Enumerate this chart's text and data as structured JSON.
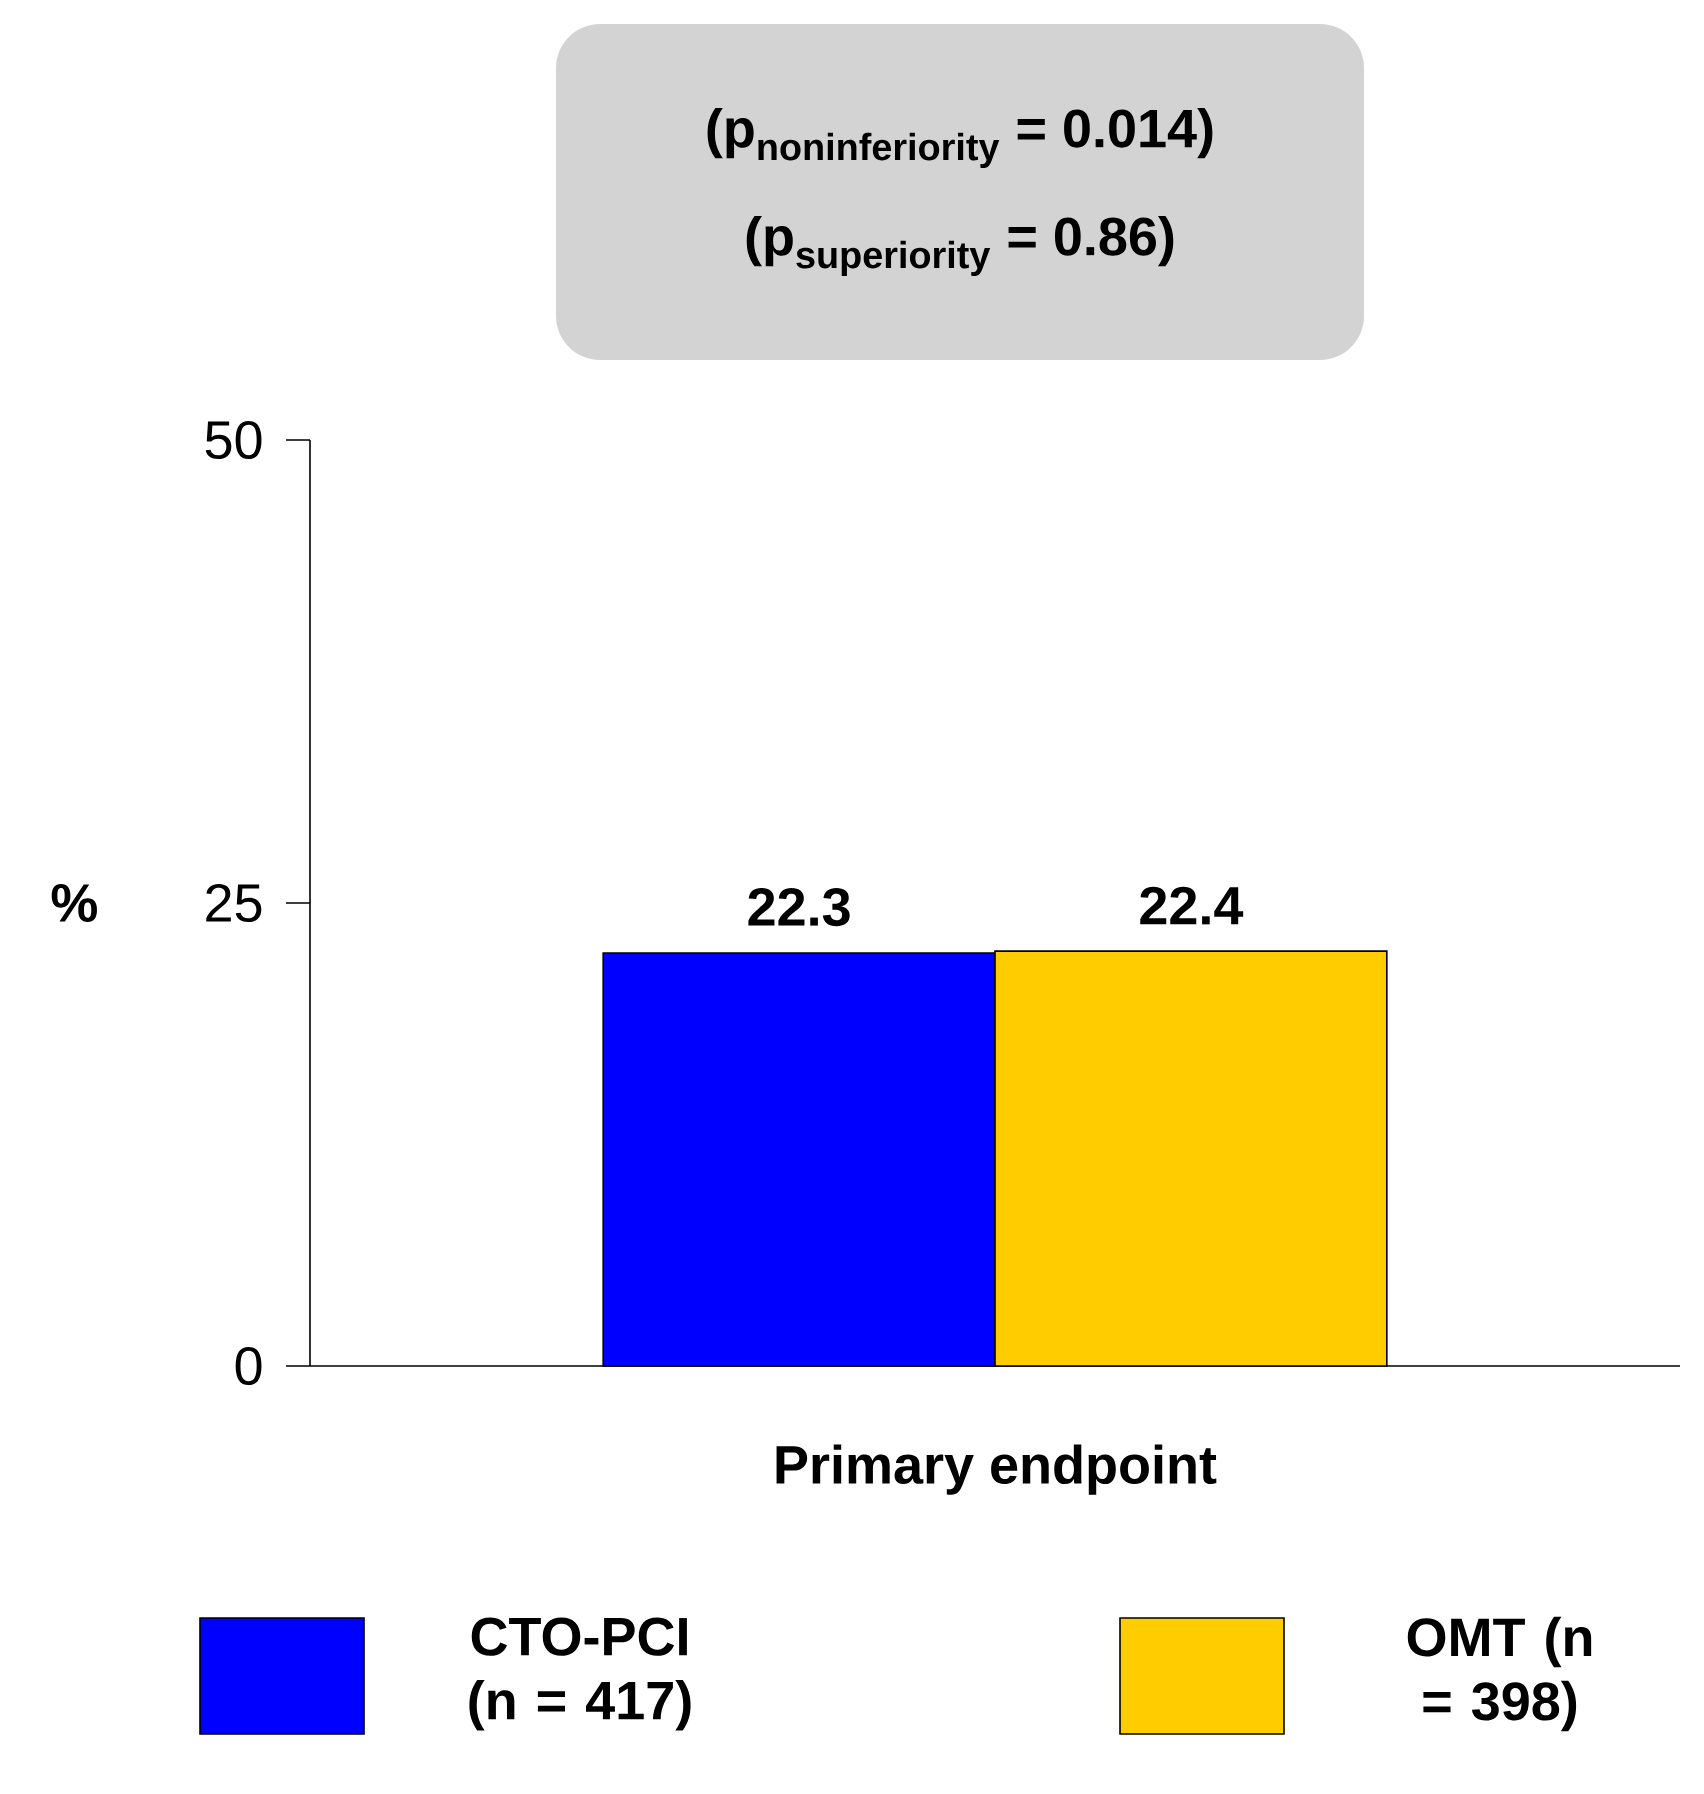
{
  "chart_data": {
    "type": "bar",
    "ylabel": "%",
    "categories": [
      "Primary endpoint"
    ],
    "series": [
      {
        "name": "CTO-PCI (n = 417)",
        "color": "#0000ff",
        "values": [
          22.3
        ]
      },
      {
        "name": "OMT (n = 398)",
        "color": "#ffcc00",
        "values": [
          22.4
        ]
      }
    ],
    "ylim": [
      0,
      50
    ],
    "yticks": [
      0,
      25,
      50
    ],
    "data_labels": true,
    "legend": "bottom",
    "annotations": [
      "\\textbf{(p}_{\\textbf{noninferiority}}\\textbf{ = 0.014)}",
      "\\textbf{(p}_{\\textbf{superiority}}\\textbf{ = 0.86)}"
    ]
  }
}
